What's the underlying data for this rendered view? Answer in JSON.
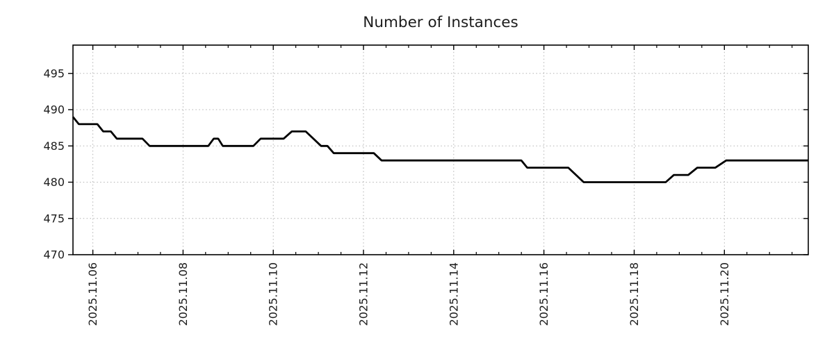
{
  "title": "Number of Instances",
  "colors": {
    "line": "#000000",
    "grid": "#b2b2b2",
    "axis": "#000000",
    "text": "#1c1c1c",
    "background": "#ffffff"
  },
  "chart_data": {
    "type": "line",
    "title": "Number of Instances",
    "xlabel": "",
    "ylabel": "",
    "x_unit": "date (day of November 2025)",
    "xlim": [
      5.56,
      21.86
    ],
    "ylim": [
      470,
      498.9
    ],
    "grid": "dotted, at major ticks only",
    "legend": "none",
    "x_major_ticks": [
      {
        "value": 6,
        "label": "2025.11.06"
      },
      {
        "value": 8,
        "label": "2025.11.08"
      },
      {
        "value": 10,
        "label": "2025.11.10"
      },
      {
        "value": 12,
        "label": "2025.11.12"
      },
      {
        "value": 14,
        "label": "2025.11.14"
      },
      {
        "value": 16,
        "label": "2025.11.16"
      },
      {
        "value": 18,
        "label": "2025.11.18"
      },
      {
        "value": 20,
        "label": "2025.11.20"
      }
    ],
    "x_minor_step": 0.5,
    "y_ticks": [
      470,
      475,
      480,
      485,
      490,
      495
    ],
    "series": [
      {
        "name": "Number of Instances",
        "color": "#000000",
        "points": [
          [
            5.56,
            489
          ],
          [
            5.69,
            488
          ],
          [
            6.1,
            488
          ],
          [
            6.23,
            487
          ],
          [
            6.4,
            487
          ],
          [
            6.53,
            486
          ],
          [
            7.1,
            486
          ],
          [
            7.26,
            485
          ],
          [
            8.56,
            485
          ],
          [
            8.68,
            486
          ],
          [
            8.78,
            486
          ],
          [
            8.88,
            485
          ],
          [
            9.56,
            485
          ],
          [
            9.72,
            486
          ],
          [
            10.23,
            486
          ],
          [
            10.41,
            487
          ],
          [
            10.72,
            487
          ],
          [
            11.06,
            485
          ],
          [
            11.2,
            485
          ],
          [
            11.34,
            484
          ],
          [
            12.23,
            484
          ],
          [
            12.4,
            483
          ],
          [
            15.5,
            483
          ],
          [
            15.63,
            482
          ],
          [
            16.54,
            482
          ],
          [
            16.88,
            480
          ],
          [
            18.7,
            480
          ],
          [
            18.88,
            481
          ],
          [
            19.2,
            481
          ],
          [
            19.4,
            482
          ],
          [
            19.8,
            482
          ],
          [
            20.04,
            483
          ],
          [
            21.86,
            483
          ]
        ]
      }
    ]
  }
}
